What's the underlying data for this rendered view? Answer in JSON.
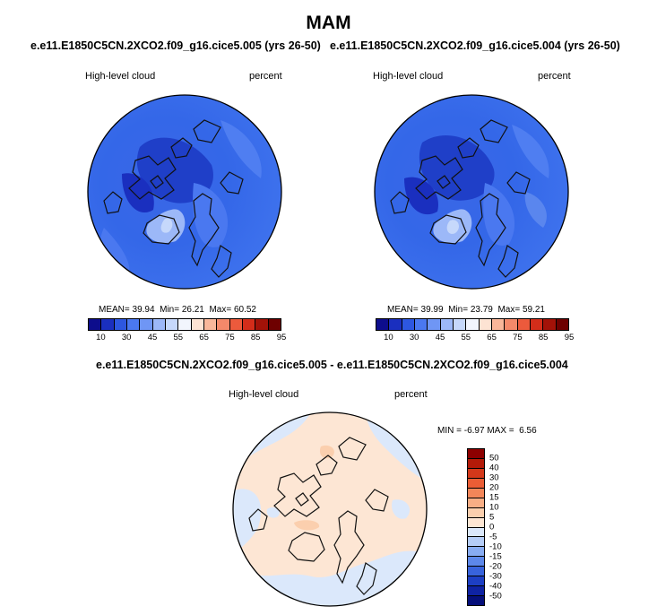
{
  "title": "MAM",
  "panels": [
    {
      "case": "e.e11.E1850C5CN.2XCO2.f09_g16.cice5.005 (yrs 26-50)",
      "variable": "High-level cloud",
      "units": "percent",
      "mean_label": "MEAN=",
      "mean": "39.94",
      "min_label": "Min=",
      "min": "26.21",
      "max_label": "Max=",
      "max": "60.52"
    },
    {
      "case": "e.e11.E1850C5CN.2XCO2.f09_g16.cice5.004 (yrs 26-50)",
      "variable": "High-level cloud",
      "units": "percent",
      "mean_label": "MEAN=",
      "mean": "39.99",
      "min_label": "Min=",
      "min": "23.79",
      "max_label": "Max=",
      "max": "59.21"
    }
  ],
  "field_colorbar": {
    "colors": [
      "#0d0d8c",
      "#1a2fbf",
      "#2d57e0",
      "#4a78f0",
      "#6f96f5",
      "#9cb8f8",
      "#c6d8fb",
      "#f2f5fd",
      "#fde3d3",
      "#f9b79a",
      "#f4896a",
      "#ec5a3c",
      "#d42d1a",
      "#a31208",
      "#6e0000"
    ],
    "ticks": [
      "10",
      "30",
      "45",
      "55",
      "65",
      "75",
      "85",
      "95"
    ]
  },
  "diff": {
    "title": "e.e11.E1850C5CN.2XCO2.f09_g16.cice5.005 - e.e11.E1850C5CN.2XCO2.f09_g16.cice5.004",
    "variable": "High-level cloud",
    "units": "percent",
    "min_label": "MIN =",
    "min": "-6.97",
    "max_label": "MAX =",
    "max": "6.56",
    "colorbar": {
      "colors": [
        "#8c0000",
        "#b31a08",
        "#d4381a",
        "#ea5d35",
        "#f38659",
        "#f8ae85",
        "#fbcfae",
        "#fde6d4",
        "#dbe8fb",
        "#b5cdf7",
        "#88acf2",
        "#5d88ea",
        "#3863dc",
        "#1d3fc4",
        "#0f23a3",
        "#050f7a"
      ],
      "ticks": [
        "50",
        "40",
        "30",
        "20",
        "15",
        "10",
        "5",
        "0",
        "-5",
        "-10",
        "-15",
        "-20",
        "-30",
        "-40",
        "-50"
      ]
    }
  }
}
